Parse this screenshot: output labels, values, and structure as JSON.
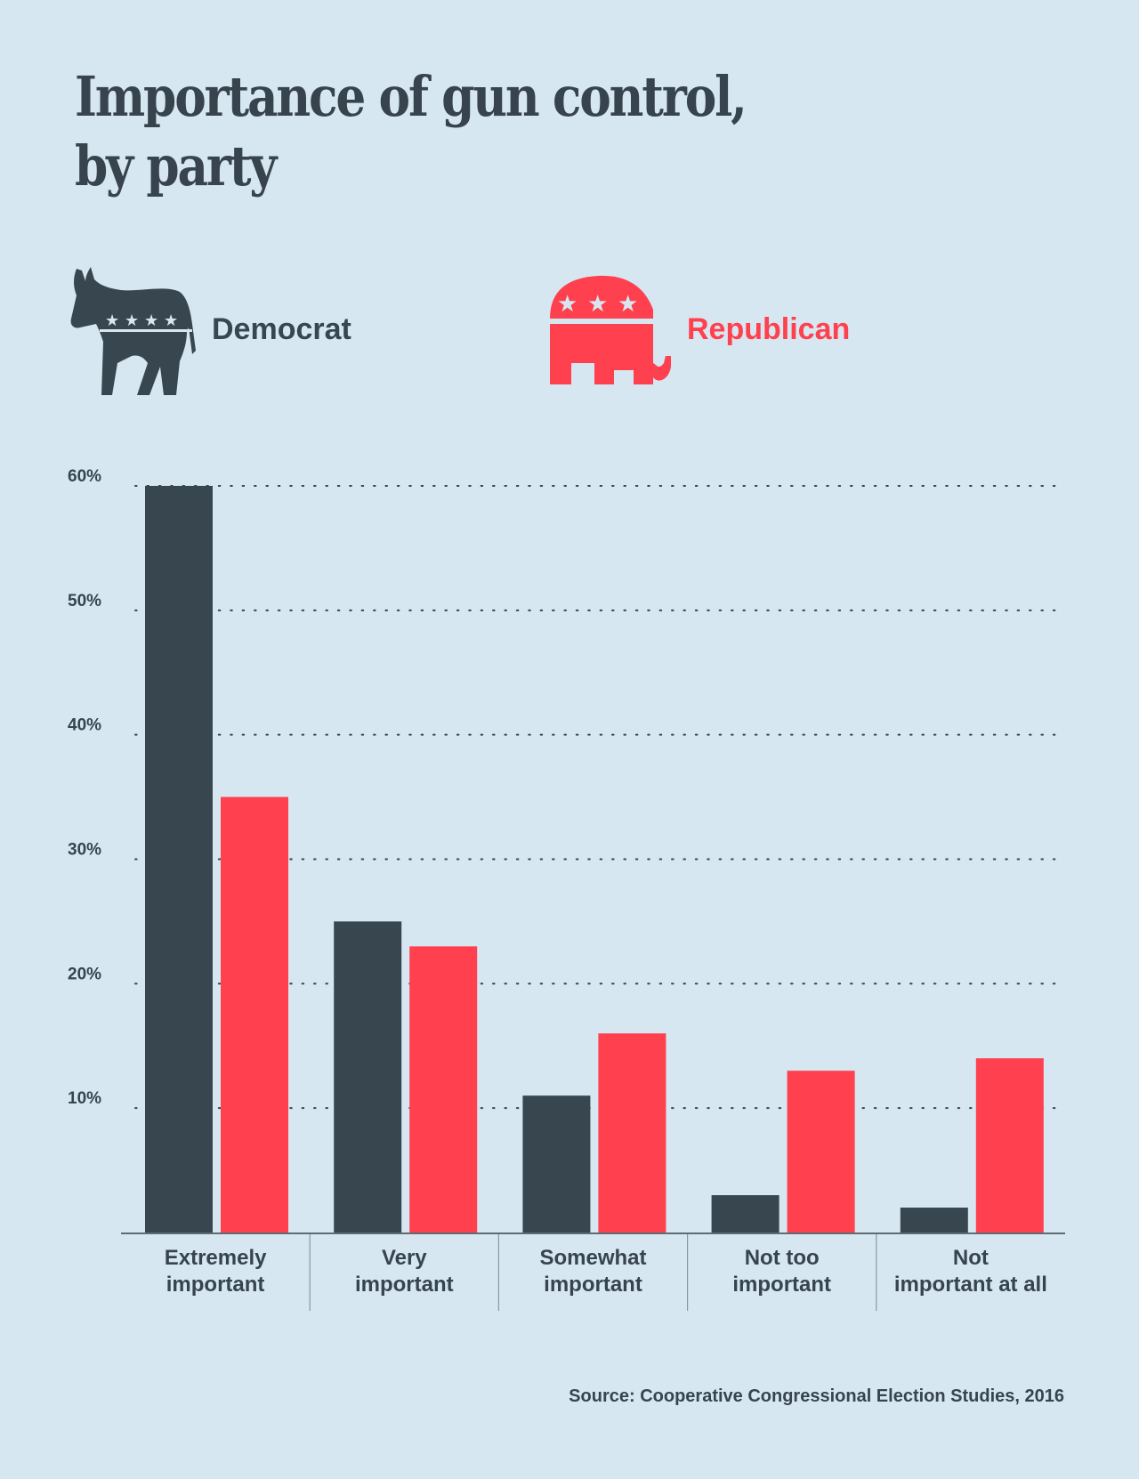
{
  "title_line1": "Importance of gun control,",
  "title_line2": "by party",
  "legend": {
    "democrat": {
      "label": "Democrat",
      "icon": "donkey-icon",
      "color": "#38464f"
    },
    "republican": {
      "label": "Republican",
      "icon": "elephant-icon",
      "color": "#ff404e"
    }
  },
  "source": "Source: Cooperative Congressional Election Studies, 2016",
  "chart_data": {
    "type": "bar",
    "title": "Importance of gun control, by party",
    "xlabel": "",
    "ylabel": "",
    "categories": [
      [
        "Extremely",
        "important"
      ],
      [
        "Very",
        "important"
      ],
      [
        "Somewhat",
        "important"
      ],
      [
        "Not too",
        "important"
      ],
      [
        "Not",
        "important at all"
      ]
    ],
    "series": [
      {
        "name": "Democrat",
        "color": "#38464f",
        "values": [
          60,
          25,
          11,
          3,
          2
        ]
      },
      {
        "name": "Republican",
        "color": "#ff404e",
        "values": [
          35,
          23,
          16,
          13,
          14
        ]
      }
    ],
    "ylim": [
      0,
      60
    ],
    "yticks": [
      10,
      20,
      30,
      40,
      50,
      60
    ],
    "ytick_labels": [
      "10%",
      "20%",
      "30%",
      "40%",
      "50%",
      "60%"
    ],
    "grid": "dotted-horizontal",
    "legend_position": "top"
  }
}
